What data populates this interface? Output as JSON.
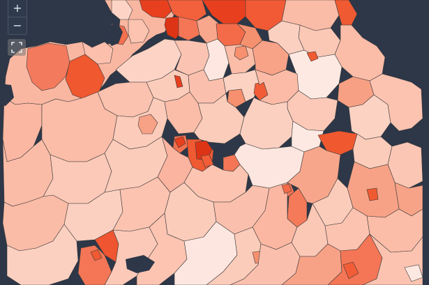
{
  "map": {
    "background_color": "#2d3748",
    "border_color": "#3a3a3a",
    "choropleth_scale": [
      "#fde6df",
      "#fcd0c2",
      "#fbb4a0",
      "#f79a80",
      "#f4785a",
      "#f05a3c",
      "#e63a1e",
      "#d62a12"
    ]
  },
  "controls": {
    "zoom_in_label": "+",
    "zoom_out_label": "−",
    "fullscreen_icon": "fullscreen-icon"
  }
}
